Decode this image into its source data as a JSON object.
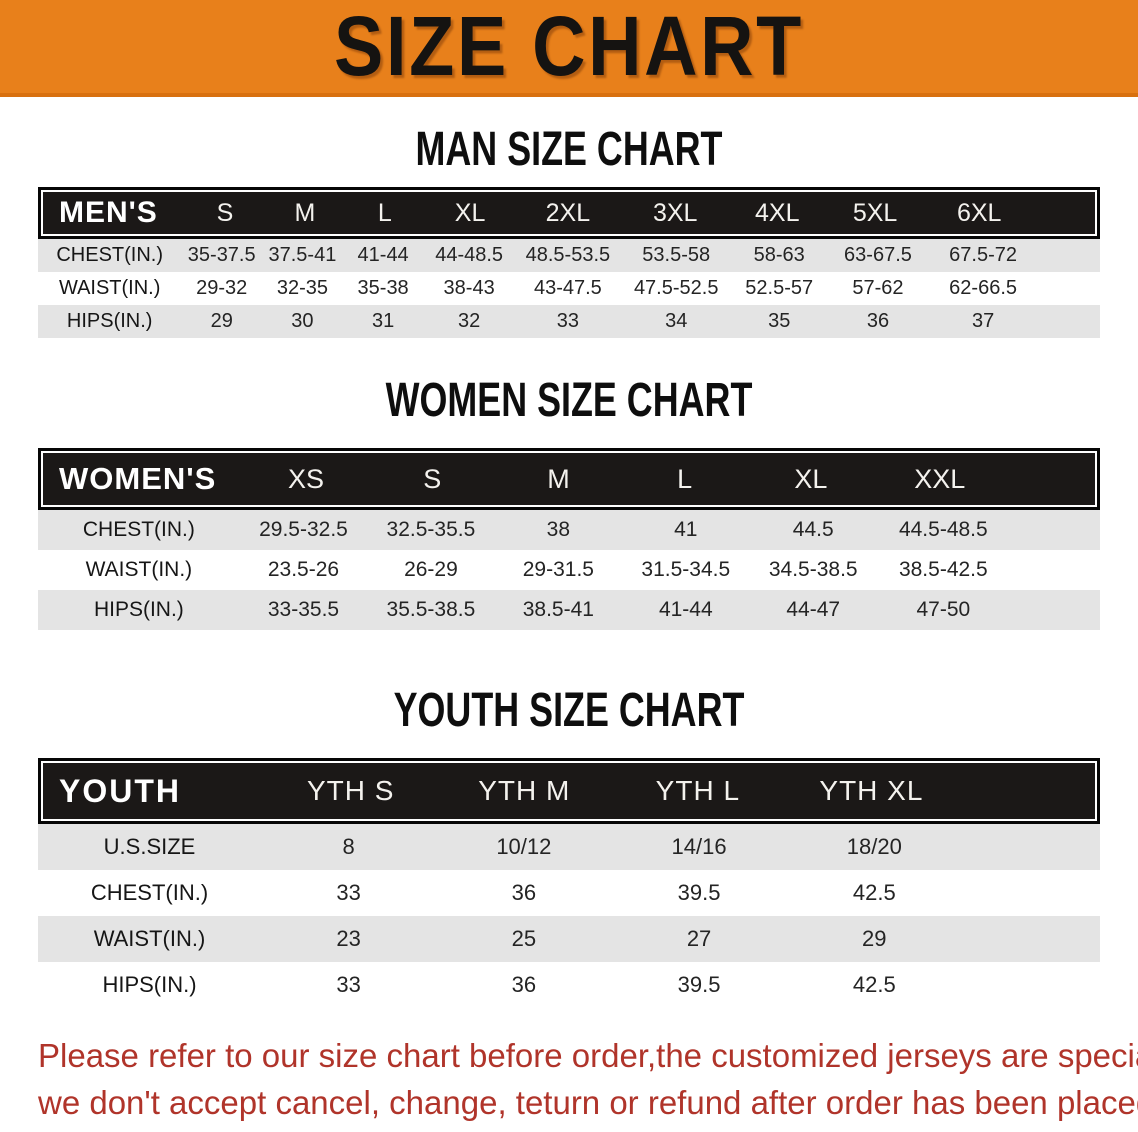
{
  "banner": {
    "title": "SIZE CHART",
    "bg_color": "#E8801B",
    "text_color": "#151311"
  },
  "sections": [
    {
      "title": "MAN SIZE CHART",
      "header_label": "MEN'S",
      "columns": [
        "S",
        "M",
        "L",
        "XL",
        "2XL",
        "3XL",
        "4XL",
        "5XL",
        "6XL"
      ],
      "rows": [
        {
          "label": "CHEST(IN.)",
          "values": [
            "35-37.5",
            "37.5-41",
            "41-44",
            "44-48.5",
            "48.5-53.5",
            "53.5-58",
            "58-63",
            "63-67.5",
            "67.5-72"
          ]
        },
        {
          "label": "WAIST(IN.)",
          "values": [
            "29-32",
            "32-35",
            "35-38",
            "38-43",
            "43-47.5",
            "47.5-52.5",
            "52.5-57",
            "57-62",
            "62-66.5"
          ]
        },
        {
          "label": "HIPS(IN.)",
          "values": [
            "29",
            "30",
            "31",
            "32",
            "33",
            "34",
            "35",
            "36",
            "37"
          ]
        }
      ]
    },
    {
      "title": "WOMEN SIZE CHART",
      "header_label": "WOMEN'S",
      "columns": [
        "XS",
        "S",
        "M",
        "L",
        "XL",
        "XXL"
      ],
      "rows": [
        {
          "label": "CHEST(IN.)",
          "values": [
            "29.5-32.5",
            "32.5-35.5",
            "38",
            "41",
            "44.5",
            "44.5-48.5"
          ]
        },
        {
          "label": "WAIST(IN.)",
          "values": [
            "23.5-26",
            "26-29",
            "29-31.5",
            "31.5-34.5",
            "34.5-38.5",
            "38.5-42.5"
          ]
        },
        {
          "label": "HIPS(IN.)",
          "values": [
            "33-35.5",
            "35.5-38.5",
            "38.5-41",
            "41-44",
            "44-47",
            "47-50"
          ]
        }
      ]
    },
    {
      "title": "YOUTH SIZE CHART",
      "header_label": "YOUTH",
      "columns": [
        "YTH S",
        "YTH M",
        "YTH L",
        "YTH XL"
      ],
      "rows": [
        {
          "label": "U.S.SIZE",
          "values": [
            "8",
            "10/12",
            "14/16",
            "18/20"
          ]
        },
        {
          "label": "CHEST(IN.)",
          "values": [
            "33",
            "36",
            "39.5",
            "42.5"
          ]
        },
        {
          "label": "WAIST(IN.)",
          "values": [
            "23",
            "25",
            "27",
            "29"
          ]
        },
        {
          "label": "HIPS(IN.)",
          "values": [
            "33",
            "36",
            "39.5",
            "42.5"
          ]
        }
      ]
    }
  ],
  "table_style": {
    "header_bar_color": "#1b1817",
    "header_text_color": "#ffffff",
    "stripe_color": "#E4E4E4"
  },
  "disclaimer": {
    "line1": "Please refer to our size chart before order,the customized jerseys are special products,",
    "line2": "we don't accept cancel, change, teturn or refund after order has been placed!",
    "color": "#B0342A"
  }
}
